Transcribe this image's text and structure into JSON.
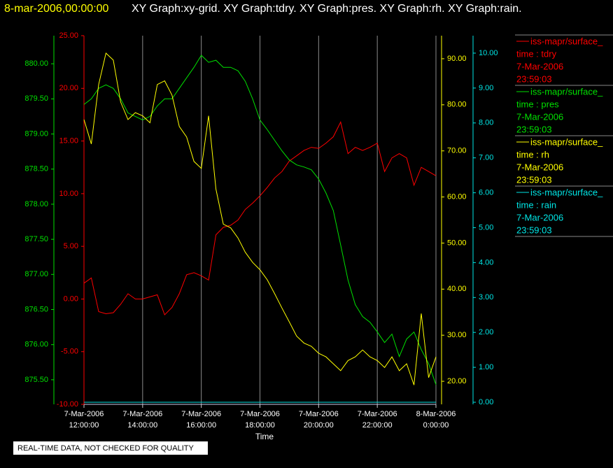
{
  "chart_data": {
    "type": "line",
    "title_date": "8-mar-2006,00:00:00",
    "title": "XY Graph:xy-grid.  XY Graph:tdry.  XY Graph:pres.  XY Graph:rh.  XY Graph:rain.",
    "x_label": "Time",
    "footnote": "REAL-TIME DATA, NOT CHECKED FOR QUALITY",
    "grid": true,
    "xlim": [
      12,
      24
    ],
    "xticks": [
      {
        "value": 12,
        "date": "7-Mar-2006",
        "time": "12:00:00"
      },
      {
        "value": 14,
        "date": "7-Mar-2006",
        "time": "14:00:00"
      },
      {
        "value": 16,
        "date": "7-Mar-2006",
        "time": "16:00:00"
      },
      {
        "value": 18,
        "date": "7-Mar-2006",
        "time": "18:00:00"
      },
      {
        "value": 20,
        "date": "7-Mar-2006",
        "time": "20:00:00"
      },
      {
        "value": 22,
        "date": "7-Mar-2006",
        "time": "22:00:00"
      },
      {
        "value": 24,
        "date": "8-Mar-2006",
        "time": "0:00:00"
      }
    ],
    "x": [
      12,
      12.25,
      12.5,
      12.75,
      13,
      13.25,
      13.5,
      13.75,
      14,
      14.25,
      14.5,
      14.75,
      15,
      15.25,
      15.5,
      15.75,
      16,
      16.25,
      16.5,
      16.75,
      17,
      17.25,
      17.5,
      17.75,
      18,
      18.25,
      18.5,
      18.75,
      19,
      19.25,
      19.5,
      19.75,
      20,
      20.25,
      20.5,
      20.75,
      21,
      21.25,
      21.5,
      21.75,
      22,
      22.25,
      22.5,
      22.75,
      23,
      23.25,
      23.5,
      23.75,
      24
    ],
    "series": [
      {
        "name": "iss-mapr/surface_",
        "label": "time : tdry",
        "last_date": "7-Mar-2006",
        "last_time": "23:59:03",
        "color": "#ff0000",
        "ylim": [
          -10,
          25
        ],
        "yticks": [
          {
            "value": -10,
            "label": "-10.00"
          },
          {
            "value": -5,
            "label": "-5.00"
          },
          {
            "value": 0,
            "label": "0.00"
          },
          {
            "value": 5,
            "label": "5.00"
          },
          {
            "value": 10,
            "label": "10.00"
          },
          {
            "value": 15,
            "label": "15.00"
          },
          {
            "value": 20,
            "label": "20.00"
          },
          {
            "value": 25,
            "label": "25.00"
          }
        ],
        "values": [
          1.5,
          2.0,
          -1.2,
          -1.4,
          -1.3,
          -0.5,
          0.5,
          0.0,
          0.0,
          0.2,
          0.4,
          -1.5,
          -0.8,
          0.5,
          2.3,
          2.5,
          2.2,
          1.8,
          6.1,
          6.8,
          7.0,
          7.5,
          8.5,
          9.1,
          9.8,
          10.6,
          11.5,
          12.1,
          13.1,
          13.6,
          14.1,
          14.4,
          14.3,
          14.8,
          15.4,
          16.8,
          13.8,
          14.4,
          14.1,
          14.4,
          14.8,
          12.1,
          13.4,
          13.8,
          13.4,
          10.8,
          12.5,
          12.1,
          11.7
        ]
      },
      {
        "name": "iss-mapr/surface_",
        "label": "time : pres",
        "last_date": "7-Mar-2006",
        "last_time": "23:59:03",
        "color": "#00e000",
        "ylim": [
          875.15,
          880.4
        ],
        "yticks": [
          {
            "value": 875.5,
            "label": "875.50"
          },
          {
            "value": 876,
            "label": "876.00"
          },
          {
            "value": 876.5,
            "label": "876.50"
          },
          {
            "value": 877,
            "label": "877.00"
          },
          {
            "value": 877.5,
            "label": "877.50"
          },
          {
            "value": 878,
            "label": "878.00"
          },
          {
            "value": 878.5,
            "label": "878.50"
          },
          {
            "value": 879,
            "label": "879.00"
          },
          {
            "value": 879.5,
            "label": "879.50"
          },
          {
            "value": 880,
            "label": "880.00"
          }
        ],
        "values": [
          879.42,
          879.5,
          879.65,
          879.7,
          879.65,
          879.5,
          879.3,
          879.25,
          879.2,
          879.25,
          879.4,
          879.5,
          879.5,
          879.65,
          879.8,
          879.95,
          880.12,
          880.02,
          880.05,
          879.95,
          879.95,
          879.9,
          879.75,
          879.5,
          879.2,
          879.06,
          878.91,
          878.76,
          878.63,
          878.56,
          878.53,
          878.49,
          878.36,
          878.16,
          877.91,
          877.42,
          876.92,
          876.57,
          876.4,
          876.32,
          876.18,
          876.03,
          876.15,
          875.83,
          876.08,
          876.18,
          875.93,
          875.73,
          875.43
        ]
      },
      {
        "name": "iss-mapr/surface_",
        "label": "time : rh",
        "last_date": "7-Mar-2006",
        "last_time": "23:59:03",
        "color": "#ffff00",
        "ylim": [
          15,
          95
        ],
        "yticks": [
          {
            "value": 20,
            "label": "20.00"
          },
          {
            "value": 30,
            "label": "30.00"
          },
          {
            "value": 40,
            "label": "40.00"
          },
          {
            "value": 50,
            "label": "50.00"
          },
          {
            "value": 60,
            "label": "60.00"
          },
          {
            "value": 70,
            "label": "70.00"
          },
          {
            "value": 80,
            "label": "80.00"
          },
          {
            "value": 90,
            "label": "90.00"
          }
        ],
        "values": [
          76.8,
          71.5,
          84.4,
          91.2,
          89.7,
          80.6,
          76.8,
          78.3,
          77.6,
          76.1,
          84.4,
          85.2,
          82.1,
          75.3,
          73.0,
          67.7,
          66.2,
          77.6,
          61.7,
          54.1,
          53.3,
          51.1,
          48.0,
          45.8,
          44.2,
          42.0,
          39.0,
          35.9,
          32.9,
          29.8,
          28.3,
          27.6,
          26.1,
          25.3,
          23.8,
          22.3,
          24.5,
          25.3,
          26.8,
          25.3,
          24.5,
          23.0,
          25.3,
          22.3,
          23.8,
          19.2,
          34.7,
          20.8,
          25.3
        ]
      },
      {
        "name": "iss-mapr/surface_",
        "label": "time : rain",
        "last_date": "7-Mar-2006",
        "last_time": "23:59:03",
        "color": "#00e5e5",
        "ylim": [
          -0.06,
          10.5
        ],
        "yticks": [
          {
            "value": 0,
            "label": "0.00"
          },
          {
            "value": 1,
            "label": "1.00"
          },
          {
            "value": 2,
            "label": "2.00"
          },
          {
            "value": 3,
            "label": "3.00"
          },
          {
            "value": 4,
            "label": "4.00"
          },
          {
            "value": 5,
            "label": "5.00"
          },
          {
            "value": 6,
            "label": "6.00"
          },
          {
            "value": 7,
            "label": "7.00"
          },
          {
            "value": 8,
            "label": "8.00"
          },
          {
            "value": 9,
            "label": "9.00"
          },
          {
            "value": 10,
            "label": "10.00"
          }
        ],
        "values": [
          0,
          0,
          0,
          0,
          0,
          0,
          0,
          0,
          0,
          0,
          0,
          0,
          0,
          0,
          0,
          0,
          0,
          0,
          0,
          0,
          0,
          0,
          0,
          0,
          0,
          0,
          0,
          0,
          0,
          0,
          0,
          0,
          0,
          0,
          0,
          0,
          0,
          0,
          0,
          0,
          0,
          0,
          0,
          0,
          0,
          0,
          0,
          0,
          0
        ]
      }
    ]
  }
}
